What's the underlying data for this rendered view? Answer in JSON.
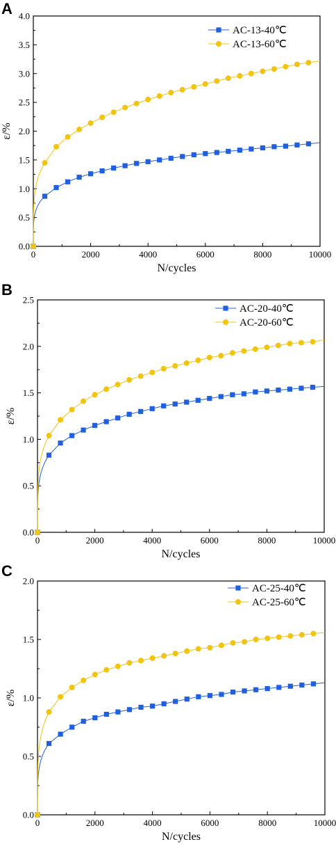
{
  "colors": {
    "s40": "#1f5fe0",
    "s60": "#f2c40f",
    "axis": "#000000"
  },
  "chart_data": [
    {
      "type": "line",
      "panel_label": "A",
      "xlabel": "N/cycles",
      "ylabel": "ε/%",
      "xlim": [
        0,
        10000
      ],
      "ylim": [
        0,
        4.0
      ],
      "xticks": [
        0,
        2000,
        4000,
        6000,
        8000,
        10000
      ],
      "yticks": [
        0.0,
        0.5,
        1.0,
        1.5,
        2.0,
        2.5,
        3.0,
        3.5,
        4.0
      ],
      "ytick_labels": [
        "0.0",
        "0.5",
        "1.0",
        "1.5",
        "2.0",
        "2.5",
        "3.0",
        "3.5",
        "4.0"
      ],
      "legend_position": "top-right",
      "x": [
        0,
        400,
        800,
        1200,
        1600,
        2000,
        2400,
        2800,
        3200,
        3600,
        4000,
        4400,
        4800,
        5200,
        5600,
        6000,
        6400,
        6800,
        7200,
        7600,
        8000,
        8400,
        8800,
        9200,
        9600
      ],
      "series": [
        {
          "name": "AC-13-40℃",
          "marker": "square",
          "color": "s40",
          "values": [
            0,
            0.87,
            1.02,
            1.12,
            1.2,
            1.26,
            1.31,
            1.36,
            1.4,
            1.44,
            1.47,
            1.5,
            1.53,
            1.56,
            1.59,
            1.61,
            1.63,
            1.65,
            1.67,
            1.69,
            1.71,
            1.73,
            1.74,
            1.76,
            1.78
          ],
          "fit_end": 1.8
        },
        {
          "name": "AC-13-60℃",
          "marker": "circle",
          "color": "s60",
          "values": [
            0,
            1.45,
            1.73,
            1.9,
            2.03,
            2.14,
            2.24,
            2.33,
            2.41,
            2.48,
            2.55,
            2.61,
            2.67,
            2.72,
            2.77,
            2.82,
            2.87,
            2.92,
            2.96,
            3.0,
            3.04,
            3.08,
            3.12,
            3.16,
            3.19
          ],
          "fit_end": 3.22
        }
      ]
    },
    {
      "type": "line",
      "panel_label": "B",
      "xlabel": "N/cycles",
      "ylabel": "ε/%",
      "xlim": [
        0,
        10000
      ],
      "ylim": [
        0,
        2.5
      ],
      "xticks": [
        0,
        2000,
        4000,
        6000,
        8000,
        10000
      ],
      "yticks": [
        0.0,
        0.5,
        1.0,
        1.5,
        2.0,
        2.5
      ],
      "ytick_labels": [
        "0.0",
        "0.5",
        "1.0",
        "1.5",
        "2.0",
        "2.5"
      ],
      "legend_position": "top-right",
      "x": [
        0,
        400,
        800,
        1200,
        1600,
        2000,
        2400,
        2800,
        3200,
        3600,
        4000,
        4400,
        4800,
        5200,
        5600,
        6000,
        6400,
        6800,
        7200,
        7600,
        8000,
        8400,
        8800,
        9200,
        9600
      ],
      "series": [
        {
          "name": "AC-20-40℃",
          "marker": "square",
          "color": "s40",
          "values": [
            0,
            0.83,
            0.96,
            1.04,
            1.1,
            1.15,
            1.19,
            1.23,
            1.27,
            1.3,
            1.33,
            1.36,
            1.38,
            1.4,
            1.42,
            1.44,
            1.46,
            1.48,
            1.49,
            1.51,
            1.52,
            1.53,
            1.54,
            1.55,
            1.56
          ],
          "fit_end": 1.57
        },
        {
          "name": "AC-20-60℃",
          "marker": "circle",
          "color": "s60",
          "values": [
            0,
            1.04,
            1.21,
            1.32,
            1.41,
            1.48,
            1.54,
            1.59,
            1.64,
            1.68,
            1.72,
            1.76,
            1.79,
            1.82,
            1.85,
            1.88,
            1.9,
            1.93,
            1.95,
            1.97,
            1.99,
            2.01,
            2.03,
            2.04,
            2.05
          ],
          "fit_end": 2.07
        }
      ]
    },
    {
      "type": "line",
      "panel_label": "C",
      "xlabel": "N/cycles",
      "ylabel": "ε/%",
      "xlim": [
        0,
        10000
      ],
      "ylim": [
        0,
        2.0
      ],
      "xticks": [
        0,
        2000,
        4000,
        6000,
        8000,
        10000
      ],
      "yticks": [
        0.0,
        0.5,
        1.0,
        1.5,
        2.0
      ],
      "ytick_labels": [
        "0.0",
        "0.5",
        "1.0",
        "1.5",
        "2.0"
      ],
      "legend_position": "top-right",
      "x": [
        0,
        400,
        800,
        1200,
        1600,
        2000,
        2400,
        2800,
        3200,
        3600,
        4000,
        4400,
        4800,
        5200,
        5600,
        6000,
        6400,
        6800,
        7200,
        7600,
        8000,
        8400,
        8800,
        9200,
        9600
      ],
      "series": [
        {
          "name": "AC-25-40℃",
          "marker": "square",
          "color": "s40",
          "values": [
            0,
            0.61,
            0.69,
            0.75,
            0.8,
            0.83,
            0.86,
            0.88,
            0.9,
            0.92,
            0.93,
            0.95,
            0.97,
            0.99,
            1.01,
            1.02,
            1.03,
            1.05,
            1.06,
            1.07,
            1.08,
            1.09,
            1.1,
            1.11,
            1.12
          ],
          "fit_end": 1.13
        },
        {
          "name": "AC-25-60℃",
          "marker": "circle",
          "color": "s60",
          "values": [
            0,
            0.88,
            1.01,
            1.09,
            1.15,
            1.2,
            1.24,
            1.27,
            1.3,
            1.32,
            1.34,
            1.36,
            1.38,
            1.4,
            1.42,
            1.43,
            1.45,
            1.47,
            1.48,
            1.5,
            1.51,
            1.52,
            1.53,
            1.54,
            1.55
          ],
          "fit_end": 1.56
        }
      ]
    }
  ]
}
